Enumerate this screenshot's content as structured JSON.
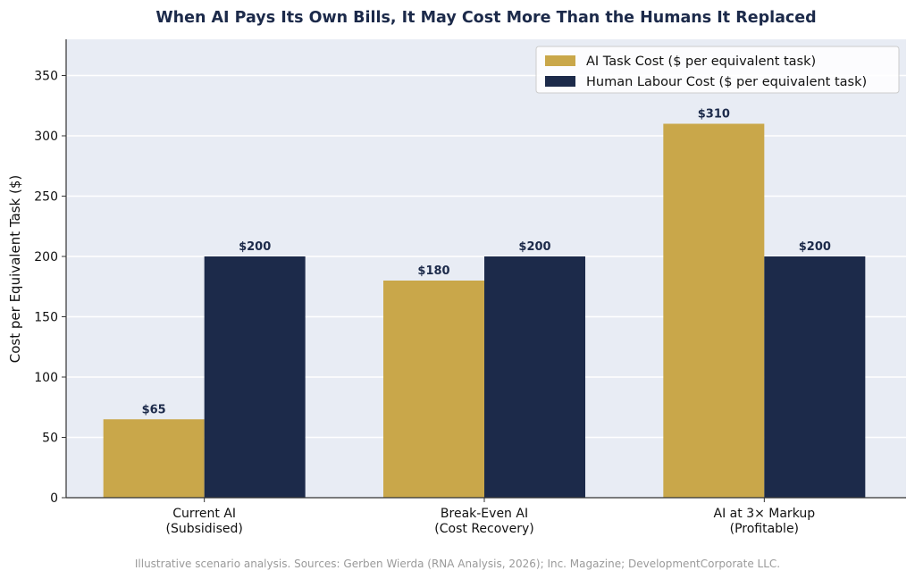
{
  "chart_data": {
    "type": "bar",
    "title": "When AI Pays Its Own Bills, It May Cost More Than the Humans It Replaced",
    "ylabel": "Cost per Equivalent Task ($)",
    "xlabel": "",
    "ylim": [
      0,
      380
    ],
    "yticks": [
      0,
      50,
      100,
      150,
      200,
      250,
      300,
      350
    ],
    "grid": true,
    "legend_position": "top-right",
    "categories": [
      [
        "Current AI",
        "(Subsidised)"
      ],
      [
        "Break-Even AI",
        "(Cost Recovery)"
      ],
      [
        "AI at 3× Markup",
        "(Profitable)"
      ]
    ],
    "series": [
      {
        "name": "AI Task Cost ($ per equivalent task)",
        "color": "#c9a74a",
        "values": [
          65,
          180,
          310
        ],
        "labels": [
          "$65",
          "$180",
          "$310"
        ]
      },
      {
        "name": "Human Labour Cost ($ per equivalent task)",
        "color": "#1c2a4a",
        "values": [
          200,
          200,
          200
        ],
        "labels": [
          "$200",
          "$200",
          "$200"
        ]
      }
    ],
    "footnote": "Illustrative scenario analysis. Sources: Gerben Wierda (RNA Analysis, 2026); Inc. Magazine; DevelopmentCorporate LLC.",
    "colors": {
      "plot_background": "#e8ecf4",
      "grid": "#ffffff",
      "axis": "#333333"
    }
  }
}
